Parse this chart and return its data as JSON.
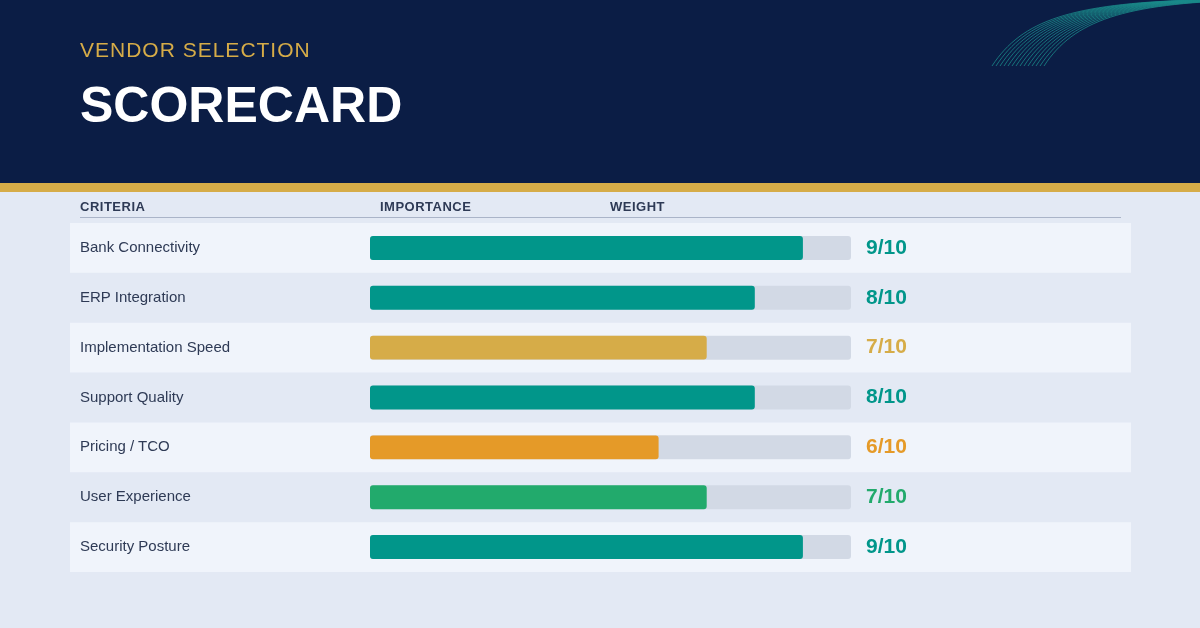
{
  "chart_data": {
    "type": "bar",
    "orientation": "horizontal",
    "subtitle": "VENDOR SELECTION",
    "title": "SCORECARD",
    "annotations": [
      "CRITERIA",
      "IMPORTANCE",
      "WEIGHT"
    ],
    "categories": [
      "Bank Connectivity",
      "ERP Integration",
      "Implementation Speed",
      "Support Quality",
      "Pricing / TCO",
      "User Experience",
      "Security Posture"
    ],
    "values": [
      0.9,
      0.8,
      0.7,
      0.8,
      0.6,
      0.7,
      0.9
    ],
    "colors": [
      "#01968a",
      "#01968a",
      "#d6ac48",
      "#01968a",
      "#e59a28",
      "#22aa6c",
      "#01968a"
    ],
    "value_labels": [
      "9/10",
      "8/10",
      "7/10",
      "8/10",
      "6/10",
      "7/10",
      "9/10"
    ],
    "xlim": [
      0,
      1
    ],
    "tick_labels": "y",
    "grid": false,
    "legend": false
  }
}
